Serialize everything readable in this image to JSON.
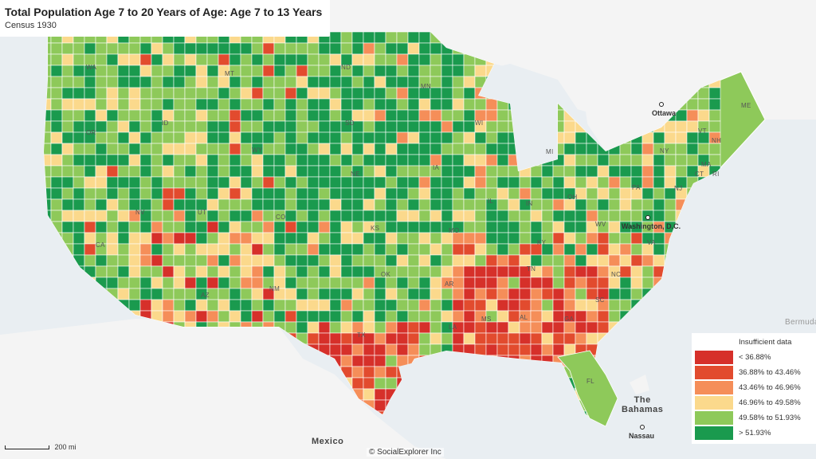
{
  "title": "Total Population Age 7 to 20 Years of Age: Age 7 to 13 Years",
  "subtitle": "Census 1930",
  "legend": [
    {
      "label": "Insufficient data",
      "color": "#ffffff"
    },
    {
      "label": "< 36.88%",
      "color": "#d6302a"
    },
    {
      "label": "36.88% to 43.46%",
      "color": "#e24b2e"
    },
    {
      "label": "43.46% to 46.96%",
      "color": "#f58e59"
    },
    {
      "label": "46.96% to 49.58%",
      "color": "#fbd98c"
    },
    {
      "label": "49.58% to 51.93%",
      "color": "#8ec95a"
    },
    {
      "label": "> 51.93%",
      "color": "#1a9a4e"
    }
  ],
  "state_labels": [
    "WA",
    "MT",
    "ND",
    "MN",
    "ME",
    "OR",
    "ID",
    "SD",
    "WI",
    "MI",
    "VT",
    "NH",
    "NY",
    "MA",
    "CT",
    "RI",
    "WY",
    "NE",
    "IA",
    "PA",
    "NJ",
    "NV",
    "UT",
    "CO",
    "IL",
    "IN",
    "OH",
    "WV",
    "CA",
    "KS",
    "MO",
    "KY",
    "VA",
    "AZ",
    "NM",
    "OK",
    "AR",
    "TN",
    "NC",
    "SC",
    "TX",
    "MS",
    "AL",
    "GA",
    "LA",
    "FL"
  ],
  "cities": [
    "Ottawa",
    "Washington, D.C.",
    "Nassau"
  ],
  "countries": [
    "Mexico",
    "The\nBahamas",
    "Bermuda"
  ],
  "scale_label": "200 mi",
  "credit": "© SocialExplorer Inc"
}
